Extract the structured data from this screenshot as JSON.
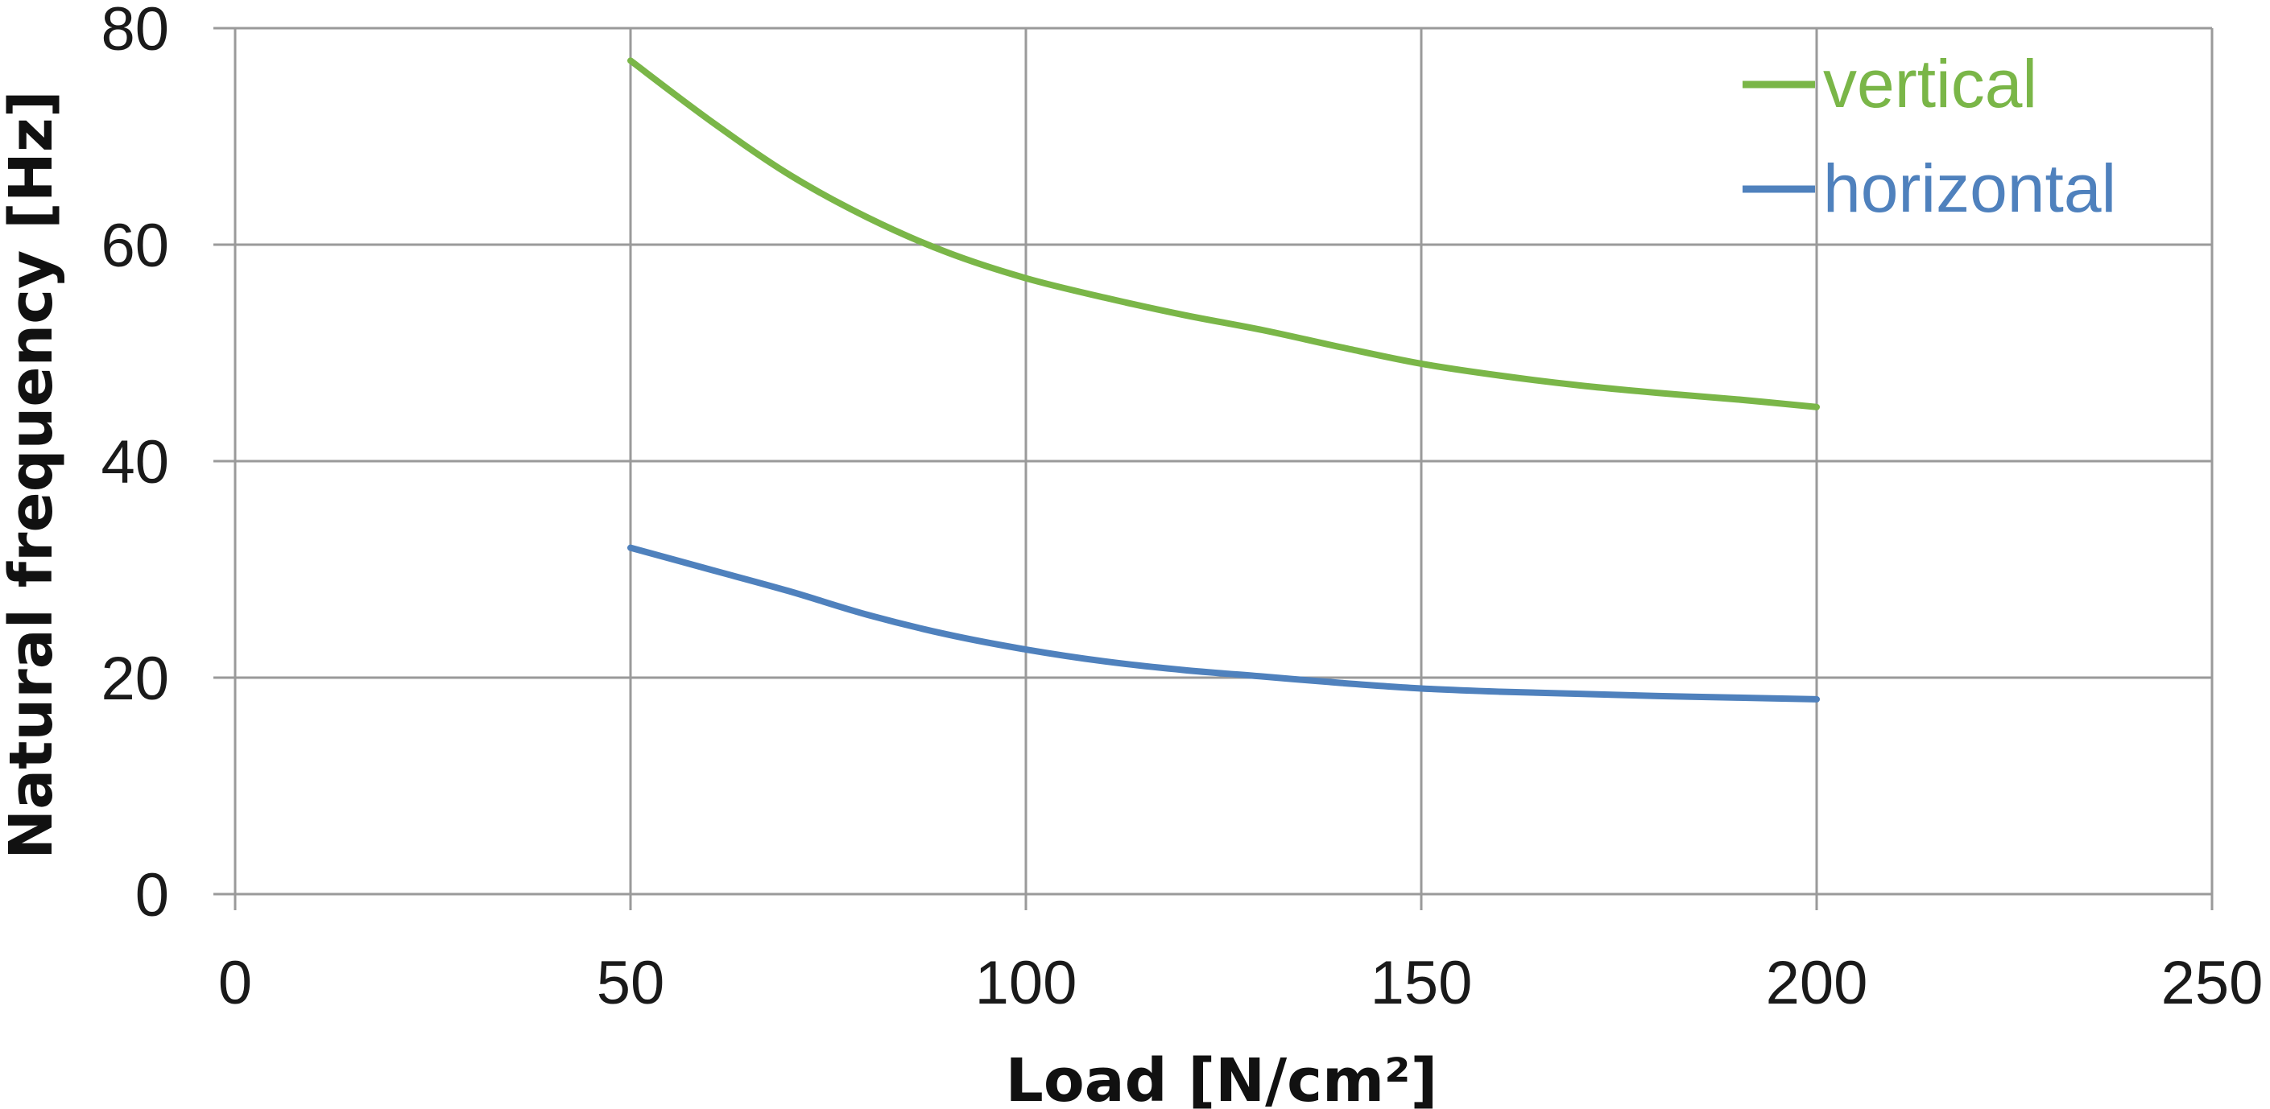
{
  "chart_data": {
    "type": "line",
    "xlabel": "Load [N/cm²]",
    "ylabel": "Natural frequency [Hz]",
    "xlim": [
      0,
      250
    ],
    "ylim": [
      0,
      80
    ],
    "x_ticks": [
      "0",
      "50",
      "100",
      "150",
      "200",
      "250"
    ],
    "y_ticks": [
      "0",
      "20",
      "40",
      "60",
      "80"
    ],
    "grid": true,
    "legend_position": "top-right",
    "series": [
      {
        "name": "vertical",
        "color": "#7ab648",
        "x": [
          50,
          60,
          70,
          80,
          90,
          100,
          110,
          120,
          130,
          140,
          150,
          160,
          170,
          180,
          190,
          200
        ],
        "y": [
          77,
          71.5,
          66.5,
          62.5,
          59.3,
          56.9,
          55.1,
          53.5,
          52.1,
          50.5,
          49,
          47.9,
          47,
          46.3,
          45.7,
          45
        ]
      },
      {
        "name": "horizontal",
        "color": "#4f81bd",
        "x": [
          50,
          60,
          70,
          80,
          90,
          100,
          110,
          120,
          130,
          140,
          150,
          160,
          170,
          180,
          190,
          200
        ],
        "y": [
          32,
          30,
          28,
          25.8,
          24,
          22.6,
          21.5,
          20.7,
          20.1,
          19.5,
          19,
          18.7,
          18.5,
          18.3,
          18.15,
          18
        ]
      }
    ]
  }
}
